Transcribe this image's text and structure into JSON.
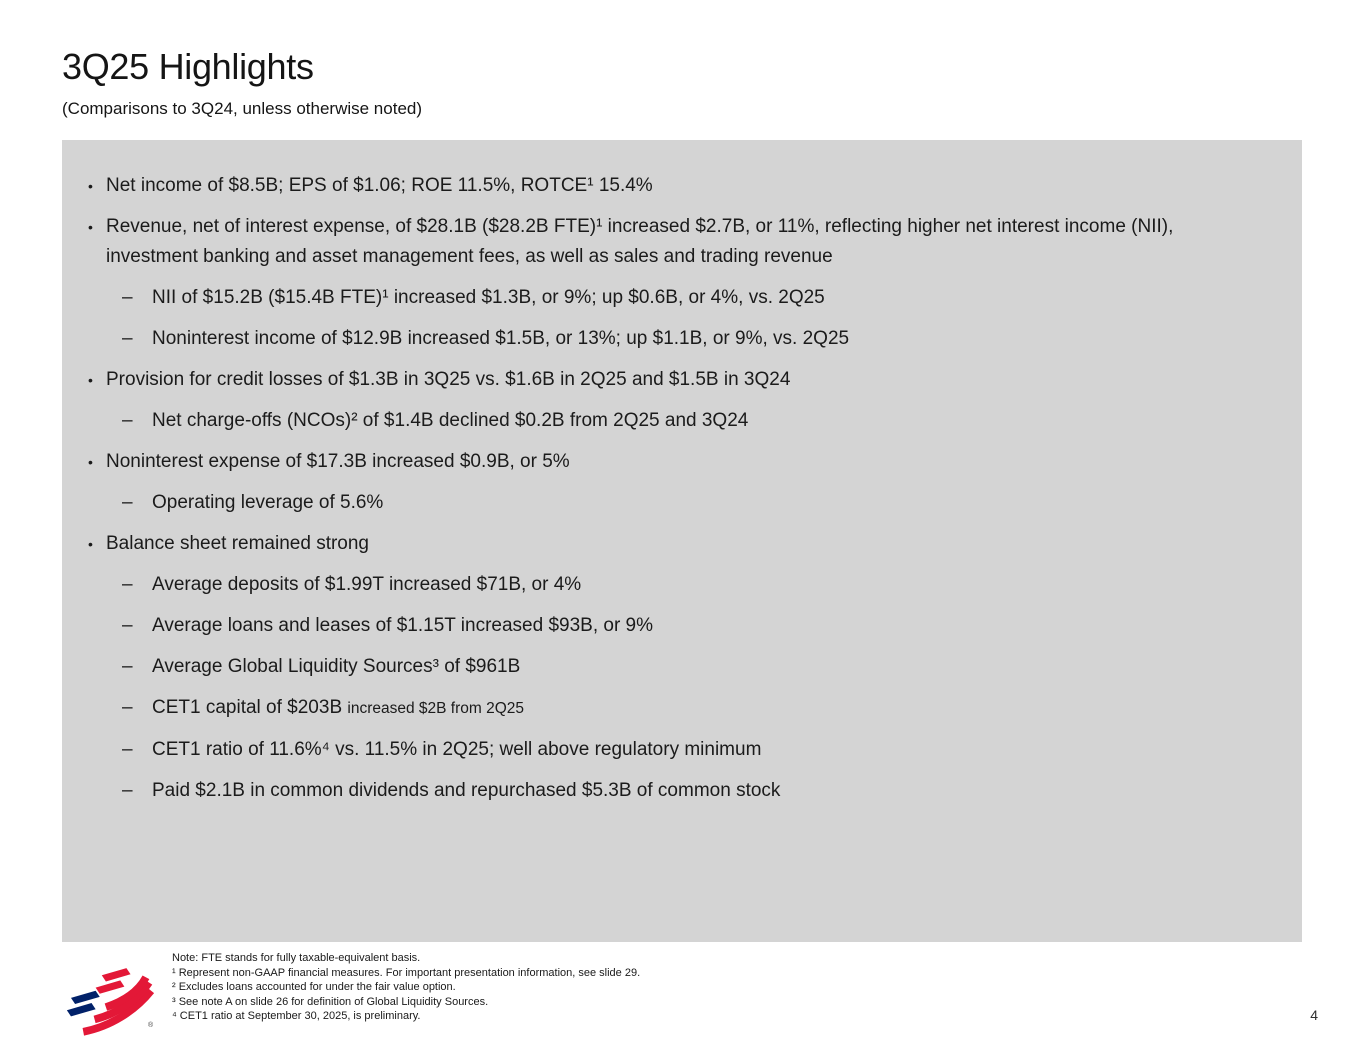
{
  "slide": {
    "title": "3Q25 Highlights",
    "subtitle": "(Comparisons to 3Q24, unless otherwise noted)",
    "page_number": "4",
    "logo_name": "Bank of America flagscape logo",
    "logo_reg": "®"
  },
  "colors": {
    "box_background": "#d4d4d4",
    "logo_red": "#e31837",
    "logo_blue": "#012169",
    "text": "#1b1b1b"
  },
  "markers": {
    "level1": "•",
    "level2": "–"
  },
  "bullets": [
    {
      "level": 1,
      "text": "Net income of $8.5B; EPS of $1.06; ROE 11.5%, ROTCE¹ 15.4%"
    },
    {
      "level": 1,
      "text": "Revenue, net of interest expense, of $28.1B ($28.2B FTE)¹ increased $2.7B, or 11%, reflecting higher net interest income (NII), investment banking and asset management fees, as well as sales and trading revenue"
    },
    {
      "level": 2,
      "text": "NII of $15.2B ($15.4B FTE)¹ increased $1.3B, or 9%; up $0.6B, or 4%, vs. 2Q25"
    },
    {
      "level": 2,
      "text": "Noninterest income of $12.9B increased $1.5B, or 13%; up $1.1B, or 9%, vs. 2Q25"
    },
    {
      "level": 1,
      "text": "Provision for credit losses of $1.3B in 3Q25 vs. $1.6B in 2Q25 and $1.5B in 3Q24"
    },
    {
      "level": 2,
      "text": "Net charge-offs (NCOs)² of $1.4B declined $0.2B from 2Q25 and 3Q24"
    },
    {
      "level": 1,
      "text": "Noninterest expense of $17.3B increased $0.9B, or 5%"
    },
    {
      "level": 2,
      "text": "Operating leverage of 5.6%"
    },
    {
      "level": 1,
      "text": "Balance sheet remained strong"
    },
    {
      "level": 2,
      "text": "Average deposits of $1.99T increased $71B, or 4%"
    },
    {
      "level": 2,
      "text": "Average loans and leases of $1.15T increased $93B, or 9%"
    },
    {
      "level": 2,
      "text": "Average Global Liquidity Sources³ of $961B"
    },
    {
      "level": 2,
      "text": "CET1 capital of $203B ",
      "small_text": "increased $2B from 2Q25"
    },
    {
      "level": 2,
      "text": "CET1 ratio of 11.6%⁴ vs. 11.5% in 2Q25; well above regulatory minimum"
    },
    {
      "level": 2,
      "text": "Paid $2.1B in common dividends and repurchased $5.3B of common stock"
    }
  ],
  "footnotes": [
    "Note: FTE stands for fully taxable-equivalent basis.",
    "¹ Represent non-GAAP financial measures. For important presentation information, see slide 29.",
    "² Excludes loans accounted for under the fair value option.",
    "³ See note A on slide 26 for definition of Global Liquidity Sources.",
    "⁴ CET1 ratio at September 30, 2025, is preliminary."
  ]
}
